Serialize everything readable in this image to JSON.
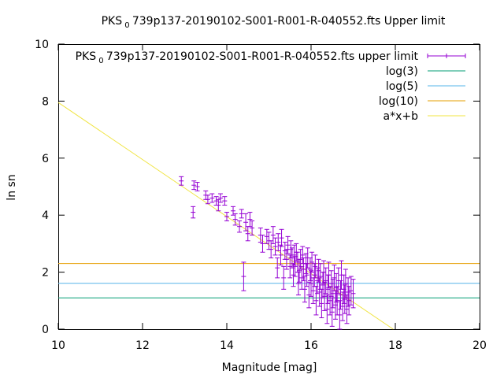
{
  "chart_data": {
    "type": "scatter",
    "title": "PKS_0739p137-20190102-S001-R001-R-040552.fts Upper limit",
    "title_parts": {
      "before": "PKS",
      "subscript": "0",
      "after": "739p137-20190102-S001-R001-R-040552.fts Upper limit"
    },
    "xlabel": "Magnitude [mag]",
    "ylabel": "ln sn",
    "xlim": [
      10,
      20
    ],
    "ylim": [
      0,
      10
    ],
    "x_ticks": [
      "10",
      "12",
      "14",
      "16",
      "18",
      "20"
    ],
    "y_ticks": [
      "0",
      "2",
      "4",
      "6",
      "8",
      "10"
    ],
    "grid": false,
    "legend_position": "top-right",
    "legend": [
      {
        "parts": {
          "before": "PKS",
          "subscript": "0",
          "after": "739p137-20190102-S001-R001-R-040552.fts upper limit"
        },
        "color": "#9400d3",
        "style": "errorbars"
      },
      {
        "label": "log(3)",
        "color": "#009e73",
        "style": "line"
      },
      {
        "label": "log(5)",
        "color": "#56b4e9",
        "style": "line"
      },
      {
        "label": "log(10)",
        "color": "#e69f00",
        "style": "line"
      },
      {
        "label": "a*x+b",
        "color": "#f0e442",
        "style": "line"
      }
    ],
    "hlines": [
      {
        "name": "log(3)",
        "y": 1.0986,
        "color": "#009e73"
      },
      {
        "name": "log(5)",
        "y": 1.6094,
        "color": "#56b4e9"
      },
      {
        "name": "log(10)",
        "y": 2.3026,
        "color": "#e69f00"
      }
    ],
    "fit_line": {
      "name": "a*x+b",
      "a": -1.0,
      "b": 17.95,
      "color": "#f0e442"
    },
    "series": [
      {
        "name": "PKS_0739p137-20190102-S001-R001-R-040552.fts upper limit",
        "color": "#9400d3",
        "points": [
          [
            12.92,
            5.2,
            0.15
          ],
          [
            13.2,
            4.1,
            0.2
          ],
          [
            13.22,
            5.05,
            0.15
          ],
          [
            13.3,
            5.0,
            0.15
          ],
          [
            13.5,
            4.7,
            0.15
          ],
          [
            13.55,
            4.55,
            0.15
          ],
          [
            13.65,
            4.6,
            0.15
          ],
          [
            13.75,
            4.5,
            0.15
          ],
          [
            13.8,
            4.35,
            0.2
          ],
          [
            13.85,
            4.6,
            0.15
          ],
          [
            13.95,
            4.5,
            0.15
          ],
          [
            14.0,
            3.95,
            0.15
          ],
          [
            14.15,
            4.15,
            0.15
          ],
          [
            14.2,
            3.85,
            0.2
          ],
          [
            14.3,
            3.6,
            0.2
          ],
          [
            14.35,
            4.05,
            0.15
          ],
          [
            14.4,
            1.85,
            0.5
          ],
          [
            14.45,
            3.75,
            0.3
          ],
          [
            14.5,
            3.35,
            0.25
          ],
          [
            14.55,
            3.85,
            0.25
          ],
          [
            14.6,
            3.55,
            0.25
          ],
          [
            14.8,
            3.3,
            0.25
          ],
          [
            14.85,
            3.0,
            0.3
          ],
          [
            14.95,
            3.25,
            0.25
          ],
          [
            15.0,
            3.1,
            0.3
          ],
          [
            15.05,
            2.8,
            0.3
          ],
          [
            15.1,
            3.3,
            0.3
          ],
          [
            15.15,
            2.9,
            0.3
          ],
          [
            15.2,
            2.15,
            0.35
          ],
          [
            15.22,
            3.05,
            0.3
          ],
          [
            15.28,
            2.6,
            0.35
          ],
          [
            15.3,
            3.2,
            0.3
          ],
          [
            15.35,
            1.8,
            0.4
          ],
          [
            15.38,
            2.75,
            0.3
          ],
          [
            15.42,
            2.45,
            0.35
          ],
          [
            15.45,
            2.95,
            0.3
          ],
          [
            15.5,
            2.2,
            0.4
          ],
          [
            15.52,
            2.8,
            0.3
          ],
          [
            15.55,
            2.5,
            0.35
          ],
          [
            15.58,
            1.9,
            0.4
          ],
          [
            15.6,
            2.6,
            0.35
          ],
          [
            15.62,
            2.2,
            0.35
          ],
          [
            15.65,
            2.7,
            0.3
          ],
          [
            15.68,
            2.35,
            0.35
          ],
          [
            15.7,
            1.6,
            0.4
          ],
          [
            15.72,
            2.05,
            0.4
          ],
          [
            15.75,
            2.45,
            0.35
          ],
          [
            15.78,
            1.8,
            0.4
          ],
          [
            15.8,
            2.6,
            0.3
          ],
          [
            15.82,
            2.1,
            0.4
          ],
          [
            15.85,
            1.4,
            0.45
          ],
          [
            15.88,
            2.3,
            0.35
          ],
          [
            15.9,
            1.9,
            0.4
          ],
          [
            15.92,
            2.5,
            0.35
          ],
          [
            15.95,
            1.2,
            0.45
          ],
          [
            15.98,
            2.1,
            0.4
          ],
          [
            16.0,
            1.6,
            0.45
          ],
          [
            16.02,
            2.35,
            0.35
          ],
          [
            16.05,
            1.35,
            0.45
          ],
          [
            16.08,
            1.9,
            0.4
          ],
          [
            16.1,
            2.2,
            0.4
          ],
          [
            16.12,
            1.0,
            0.5
          ],
          [
            16.15,
            1.7,
            0.45
          ],
          [
            16.18,
            2.05,
            0.4
          ],
          [
            16.2,
            1.3,
            0.5
          ],
          [
            16.22,
            1.85,
            0.45
          ],
          [
            16.25,
            0.9,
            0.5
          ],
          [
            16.28,
            1.55,
            0.45
          ],
          [
            16.3,
            2.0,
            0.4
          ],
          [
            16.32,
            1.15,
            0.5
          ],
          [
            16.35,
            1.7,
            0.45
          ],
          [
            16.38,
            0.7,
            0.5
          ],
          [
            16.4,
            1.4,
            0.5
          ],
          [
            16.42,
            1.9,
            0.45
          ],
          [
            16.45,
            1.0,
            0.5
          ],
          [
            16.48,
            1.6,
            0.45
          ],
          [
            16.5,
            0.6,
            0.5
          ],
          [
            16.52,
            1.25,
            0.5
          ],
          [
            16.55,
            1.8,
            0.45
          ],
          [
            16.58,
            0.85,
            0.5
          ],
          [
            16.6,
            1.45,
            0.5
          ],
          [
            16.62,
            1.0,
            0.5
          ],
          [
            16.65,
            1.7,
            0.45
          ],
          [
            16.68,
            0.5,
            0.5
          ],
          [
            16.7,
            1.2,
            0.5
          ],
          [
            16.72,
            1.9,
            0.5
          ],
          [
            16.75,
            0.8,
            0.5
          ],
          [
            16.78,
            1.4,
            0.5
          ],
          [
            16.8,
            1.05,
            0.5
          ],
          [
            16.82,
            1.6,
            0.5
          ],
          [
            16.85,
            0.7,
            0.5
          ],
          [
            16.88,
            1.3,
            0.5
          ],
          [
            16.9,
            1.0,
            0.5
          ],
          [
            16.95,
            1.35,
            0.5
          ],
          [
            17.0,
            1.25,
            0.5
          ]
        ]
      }
    ]
  }
}
